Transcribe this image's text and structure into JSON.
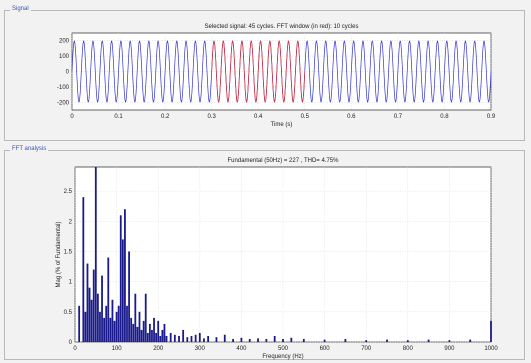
{
  "signal_panel": {
    "title": "Signal",
    "chart_data": {
      "type": "line",
      "title": "Selected signal: 45 cycles. FFT window (in red): 10 cycles",
      "xlabel": "Time (s)",
      "ylabel": "",
      "xlim": [
        0,
        0.9
      ],
      "ylim": [
        -250,
        250
      ],
      "x_ticks": [
        "0",
        "0.1",
        "0.2",
        "0.3",
        "0.4",
        "0.5",
        "0.6",
        "0.7",
        "0.8",
        "0.9"
      ],
      "y_ticks": [
        "200",
        "100",
        "0",
        "-100",
        "-200"
      ],
      "series": [
        {
          "amplitude": 200,
          "frequency_hz": 50,
          "color": "#3333cc",
          "x_range": [
            0,
            0.9
          ]
        },
        {
          "amplitude": 200,
          "frequency_hz": 50,
          "color": "#e03030",
          "x_range": [
            0.3,
            0.5
          ]
        }
      ],
      "grid": true
    }
  },
  "fft_panel": {
    "title": "FFT analysis",
    "chart_data": {
      "type": "bar",
      "title": "Fundamental (50Hz) = 227 , THD= 4.75%",
      "xlabel": "Frequency (Hz)",
      "ylabel": "Mag (% of Fundamental)",
      "xlim": [
        0,
        1000
      ],
      "ylim": [
        0,
        2.9
      ],
      "x_ticks": [
        "0",
        "100",
        "200",
        "300",
        "400",
        "500",
        "600",
        "700",
        "800",
        "900",
        "1000"
      ],
      "y_ticks": [
        "2.5",
        "2",
        "1.5",
        "1",
        "0.5",
        "0"
      ],
      "color": "#1a1a8c",
      "x": [
        10,
        20,
        25,
        30,
        35,
        40,
        45,
        50,
        55,
        60,
        65,
        70,
        75,
        80,
        85,
        90,
        95,
        100,
        105,
        110,
        115,
        120,
        125,
        130,
        135,
        140,
        145,
        150,
        155,
        160,
        165,
        170,
        175,
        180,
        185,
        190,
        195,
        200,
        205,
        210,
        215,
        220,
        230,
        240,
        250,
        260,
        270,
        280,
        290,
        300,
        310,
        320,
        340,
        360,
        380,
        400,
        420,
        440,
        460,
        480,
        500,
        520,
        550,
        600,
        650,
        700,
        750,
        800,
        850,
        900,
        950,
        1000
      ],
      "values": [
        0.6,
        2.4,
        0.5,
        1.3,
        0.9,
        0.7,
        1.2,
        2.9,
        0.8,
        0.5,
        1.1,
        0.4,
        0.6,
        1.4,
        0.4,
        0.7,
        0.35,
        0.5,
        0.6,
        2.1,
        1.7,
        2.2,
        0.6,
        1.5,
        0.4,
        0.3,
        0.8,
        0.25,
        0.5,
        0.2,
        0.35,
        0.8,
        0.15,
        0.3,
        0.2,
        0.4,
        0.15,
        0.35,
        0.1,
        0.2,
        0.3,
        0.1,
        0.15,
        0.12,
        0.1,
        0.2,
        0.08,
        0.1,
        0.12,
        0.15,
        0.06,
        0.1,
        0.08,
        0.12,
        0.05,
        0.07,
        0.05,
        0.06,
        0.05,
        0.1,
        0.05,
        0.07,
        0.05,
        0.04,
        0.05,
        0.03,
        0.04,
        0.03,
        0.04,
        0.03,
        0.04,
        0.35
      ],
      "grid": true
    }
  }
}
